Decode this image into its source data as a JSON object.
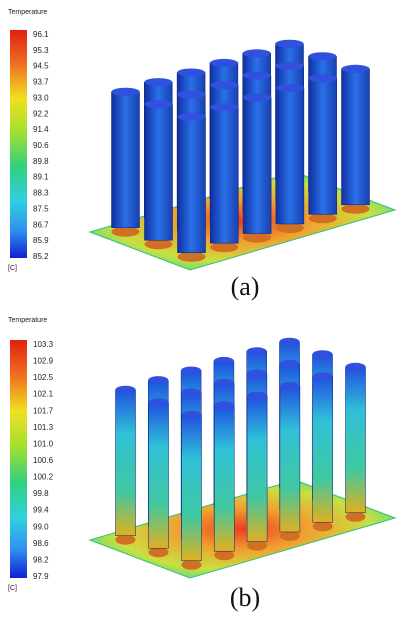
{
  "panels": [
    {
      "legend_title": "Temperature",
      "ticks": [
        "96.1",
        "95.3",
        "94.5",
        "93.7",
        "93.0",
        "92.2",
        "91.4",
        "90.6",
        "89.8",
        "89.1",
        "88.3",
        "87.5",
        "86.7",
        "85.9",
        "85.2"
      ],
      "unit": "[C]",
      "caption": "(a)"
    },
    {
      "legend_title": "Temperature",
      "ticks": [
        "103.3",
        "102.9",
        "102.5",
        "102.1",
        "101.7",
        "101.3",
        "101.0",
        "100.6",
        "100.2",
        "99.8",
        "99.4",
        "99.0",
        "98.6",
        "98.2",
        "97.9"
      ],
      "unit": "[C]",
      "caption": "(b)"
    }
  ]
}
